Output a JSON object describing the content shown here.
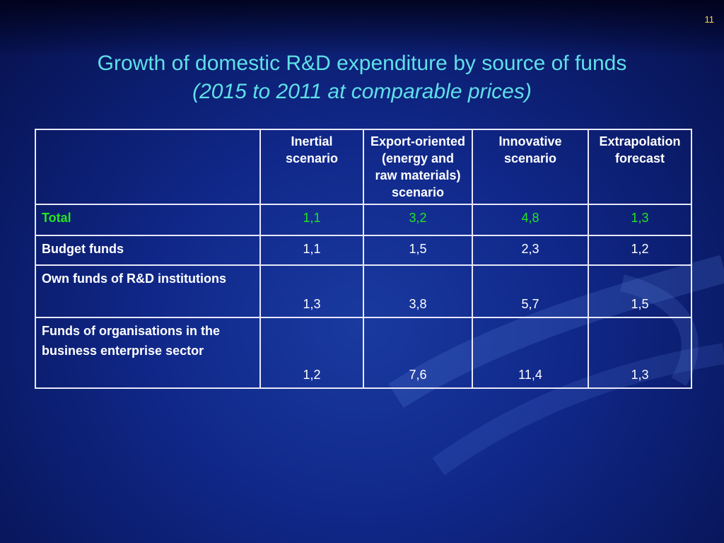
{
  "slide": {
    "page_number": "11",
    "title": "Growth of domestic R&D expenditure by source of funds",
    "subtitle": "(2015 to 2011 at comparable prices)"
  },
  "table": {
    "headers": [
      "",
      "Inertial scenario",
      "Export-oriented (energy and raw materials) scenario",
      "Innovative scenario",
      "Extrapolation forecast"
    ],
    "rows": [
      {
        "label": "Total",
        "values": [
          "1,1",
          "3,2",
          "4,8",
          "1,3"
        ]
      },
      {
        "label": "Budget funds",
        "values": [
          "1,1",
          "1,5",
          "2,3",
          "1,2"
        ]
      },
      {
        "label": "Own funds of R&D institutions",
        "values": [
          "1,3",
          "3,8",
          "5,7",
          "1,5"
        ]
      },
      {
        "label": "Funds of organisations in the business enterprise sector",
        "values": [
          "1,2",
          "7,6",
          "11,4",
          "1,3"
        ]
      }
    ]
  },
  "colors": {
    "title": "#5fe0e8",
    "total_row": "#22e622",
    "page_number": "#ffd54a",
    "background": "#10288a"
  }
}
